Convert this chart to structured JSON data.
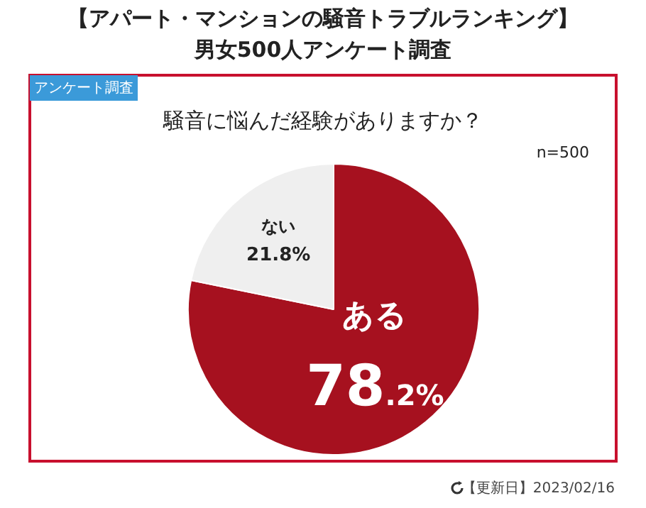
{
  "chart_data": {
    "type": "pie",
    "title": "【アパート・マンションの騒音トラブルランキング】",
    "subtitle": "男女500人アンケート調査",
    "annotations": [
      "騒音に悩んだ経験がありますか？",
      "n=500",
      "アンケート調査",
      "【更新日】2023/02/16"
    ],
    "categories": [
      "ある",
      "ない"
    ],
    "values": [
      78.2,
      21.8
    ],
    "colors": [
      "#a6111f",
      "#efefef"
    ],
    "value_labels": [
      "78.2%",
      "21.8%"
    ],
    "legend": false
  }
}
